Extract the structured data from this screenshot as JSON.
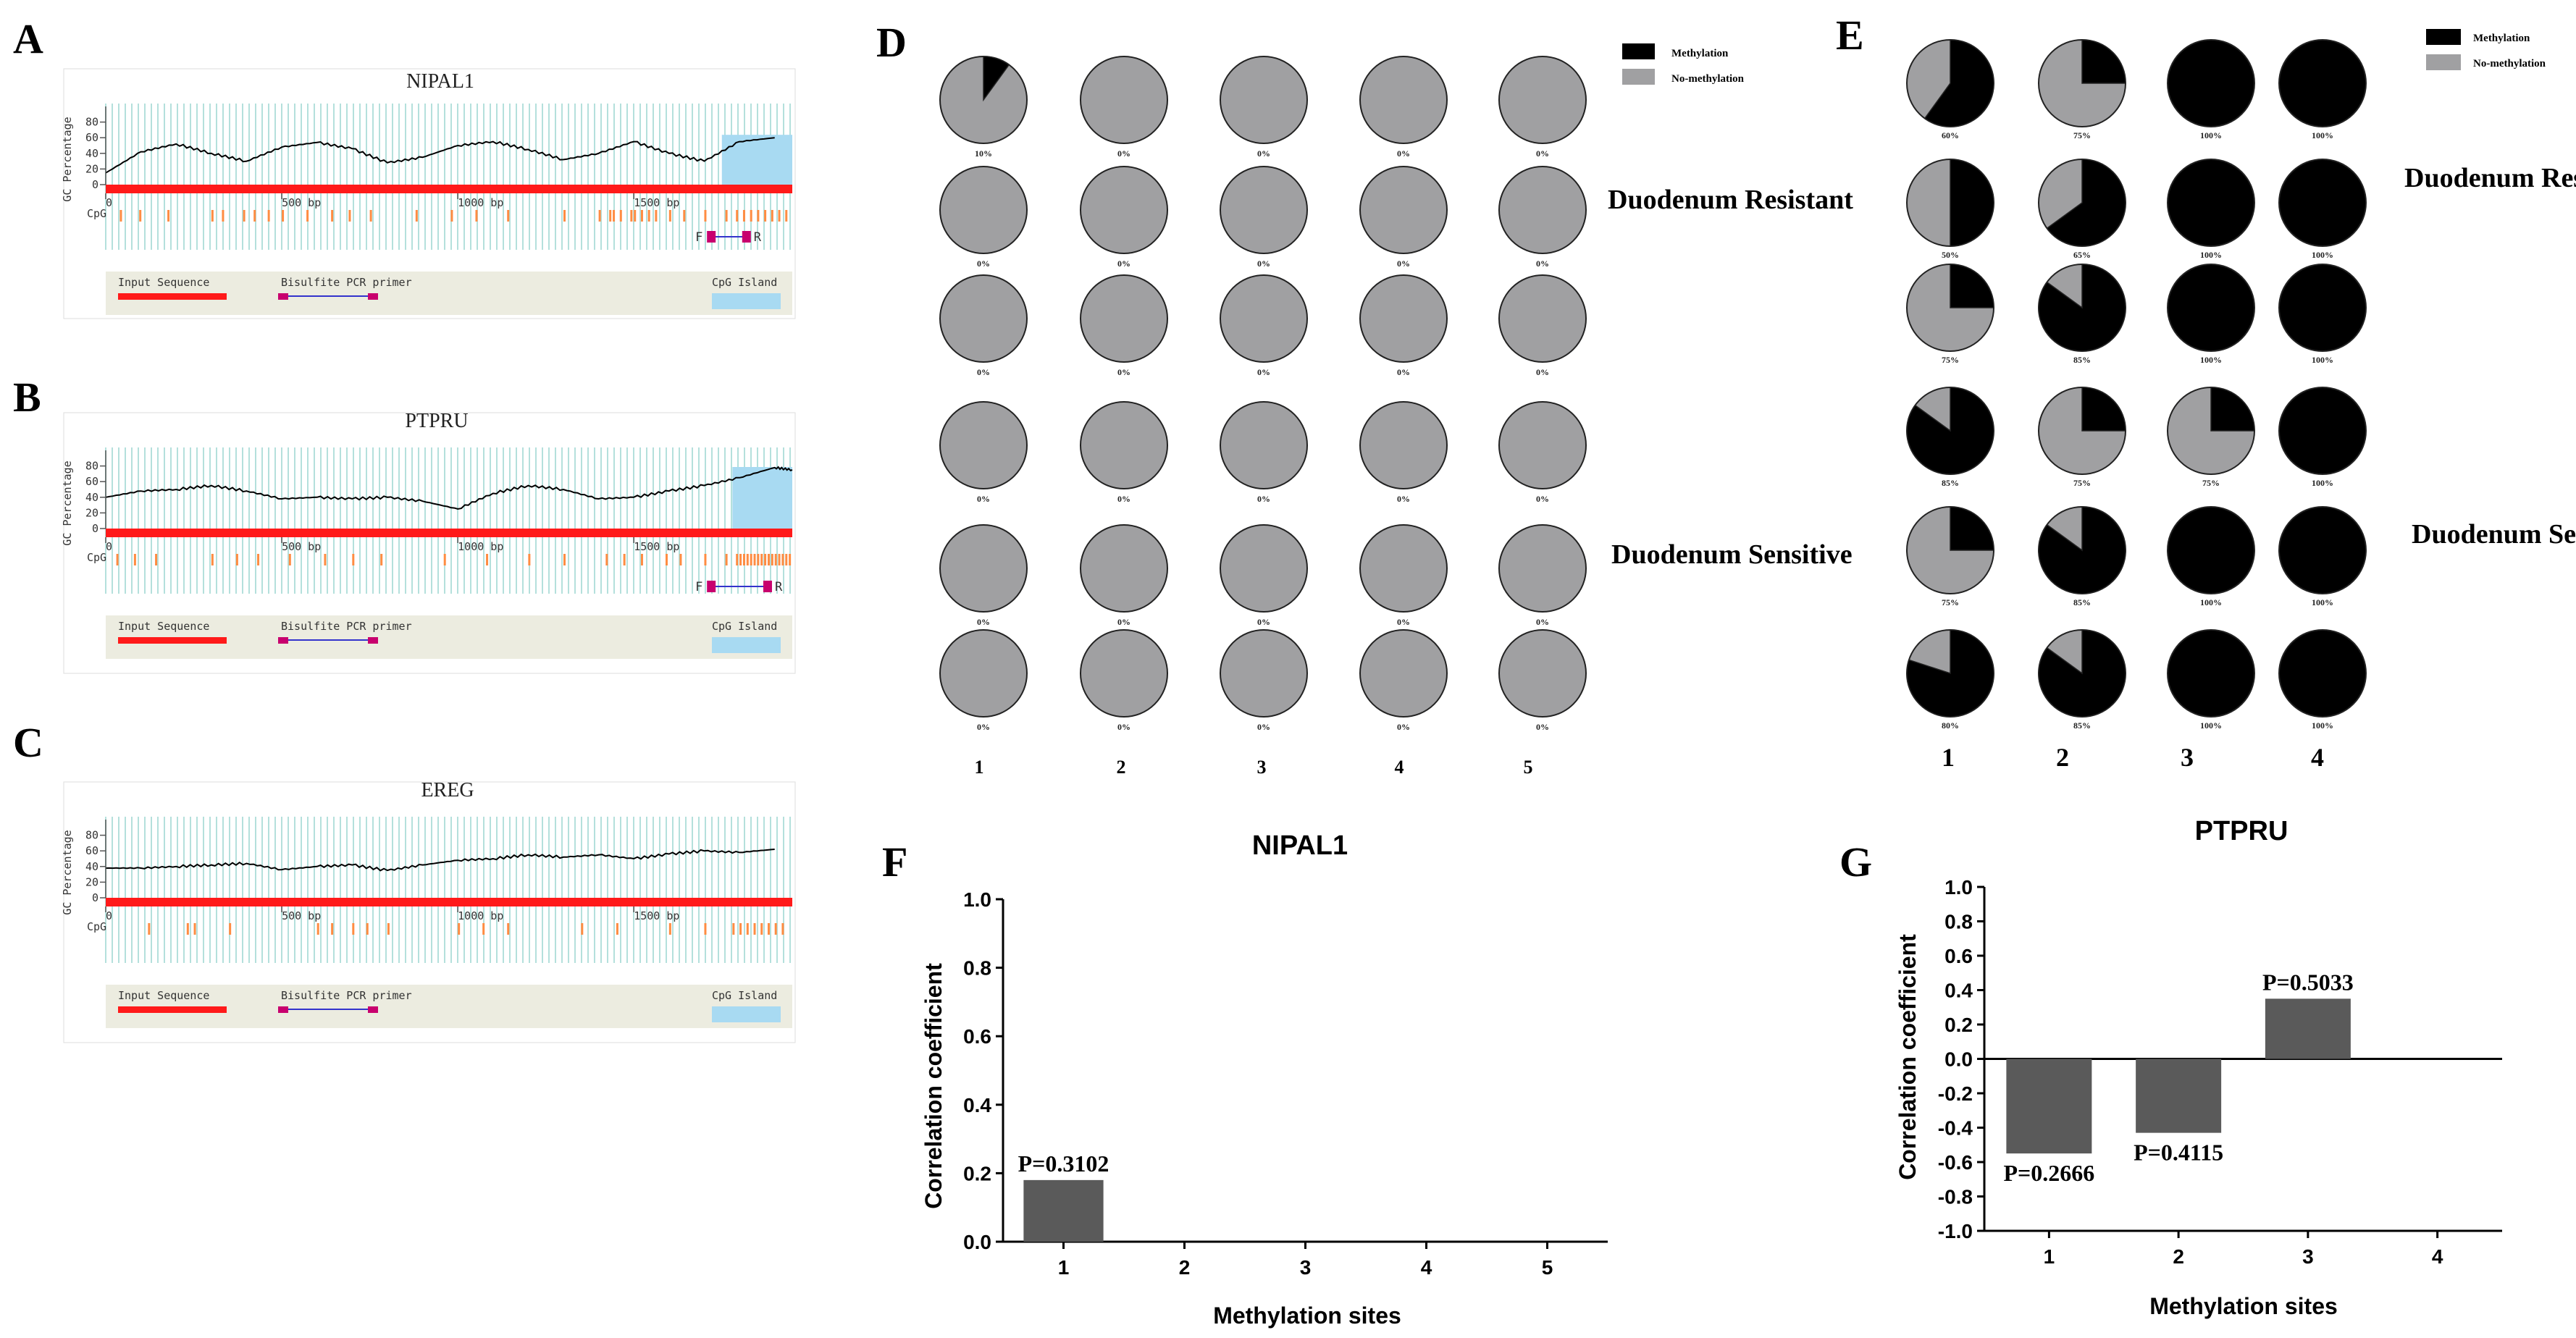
{
  "chart_data": [
    {
      "type": "line",
      "panel": "A",
      "title": "NIPAL1",
      "ylabel": "GC Percentage",
      "yticks": [
        "0",
        "20",
        "40",
        "60",
        "80"
      ],
      "xticks": [
        "0",
        "500 bp",
        "1000 bp",
        "1500 bp"
      ],
      "cpg_label": "CpG",
      "primer_ends": [
        "F",
        "R"
      ],
      "legend": [
        "Input Sequence",
        "Bisulfite PCR primer",
        "CpG Island"
      ],
      "x": [
        0,
        100,
        200,
        300,
        400,
        500,
        600,
        700,
        800,
        900,
        1000,
        1100,
        1200,
        1300,
        1400,
        1500,
        1600,
        1700,
        1800,
        1900
      ],
      "values": [
        15,
        42,
        52,
        40,
        30,
        48,
        54,
        46,
        28,
        35,
        50,
        55,
        45,
        32,
        40,
        55,
        40,
        30,
        55,
        60
      ],
      "xlim": [
        0,
        1950
      ],
      "ylim": [
        0,
        100
      ],
      "island": [
        1750,
        1950
      ]
    },
    {
      "type": "line",
      "panel": "B",
      "title": "PTPRU",
      "ylabel": "GC Percentage",
      "yticks": [
        "0",
        "20",
        "40",
        "60",
        "80"
      ],
      "xticks": [
        "0",
        "500 bp",
        "1000 bp",
        "1500 bp"
      ],
      "cpg_label": "CpG",
      "primer_ends": [
        "F",
        "R"
      ],
      "legend": [
        "Input Sequence",
        "Bisulfite PCR primer",
        "CpG Island"
      ],
      "x": [
        0,
        100,
        200,
        300,
        400,
        500,
        600,
        700,
        800,
        900,
        1000,
        1100,
        1200,
        1300,
        1400,
        1500,
        1600,
        1700,
        1800,
        1900,
        1950
      ],
      "values": [
        40,
        48,
        50,
        55,
        48,
        38,
        40,
        38,
        40,
        35,
        25,
        45,
        55,
        50,
        38,
        40,
        48,
        55,
        65,
        78,
        75
      ],
      "xlim": [
        0,
        1950
      ],
      "ylim": [
        0,
        100
      ],
      "island": [
        1780,
        1950
      ]
    },
    {
      "type": "line",
      "panel": "C",
      "title": "EREG",
      "ylabel": "GC Percentage",
      "yticks": [
        "0",
        "20",
        "40",
        "60",
        "80"
      ],
      "xticks": [
        "0",
        "500 bp",
        "1000 bp",
        "1500 bp"
      ],
      "cpg_label": "CpG",
      "legend": [
        "Input Sequence",
        "Bisulfite PCR primer",
        "CpG Island"
      ],
      "x": [
        0,
        100,
        200,
        300,
        400,
        500,
        600,
        700,
        800,
        900,
        1000,
        1100,
        1200,
        1300,
        1400,
        1500,
        1600,
        1700,
        1800,
        1900
      ],
      "values": [
        38,
        38,
        40,
        42,
        44,
        36,
        40,
        42,
        35,
        42,
        48,
        50,
        55,
        52,
        55,
        50,
        56,
        60,
        58,
        62
      ],
      "xlim": [
        0,
        1950
      ],
      "ylim": [
        0,
        100
      ]
    },
    {
      "type": "pie",
      "panel": "D",
      "columns": [
        "1",
        "2",
        "3",
        "4",
        "5"
      ],
      "legend": [
        "Methylation",
        "No-methylation"
      ],
      "groups": [
        "Duodenum Resistant",
        "Duodenum Sensitive"
      ],
      "values": [
        [
          10,
          0,
          0,
          0,
          0
        ],
        [
          0,
          0,
          0,
          0,
          0
        ],
        [
          0,
          0,
          0,
          0,
          0
        ],
        [
          0,
          0,
          0,
          0,
          0
        ],
        [
          0,
          0,
          0,
          0,
          0
        ],
        [
          0,
          0,
          0,
          0,
          0
        ]
      ],
      "labels": [
        [
          "10%",
          "0%",
          "0%",
          "0%",
          "0%"
        ],
        [
          "0%",
          "0%",
          "0%",
          "0%",
          "0%"
        ],
        [
          "0%",
          "0%",
          "0%",
          "0%",
          "0%"
        ],
        [
          "0%",
          "0%",
          "0%",
          "0%",
          "0%"
        ],
        [
          "0%",
          "0%",
          "0%",
          "0%",
          "0%"
        ],
        [
          "0%",
          "0%",
          "0%",
          "0%",
          "0%"
        ]
      ]
    },
    {
      "type": "pie",
      "panel": "E",
      "columns": [
        "1",
        "2",
        "3",
        "4"
      ],
      "legend": [
        "Methylation",
        "No-methylation"
      ],
      "groups": [
        "Duodenum Resistant",
        "Duodenum Sensitive"
      ],
      "values": [
        [
          60,
          25,
          100,
          100
        ],
        [
          50,
          65,
          100,
          100
        ],
        [
          25,
          85,
          100,
          100
        ],
        [
          85,
          25,
          25,
          100
        ],
        [
          25,
          85,
          100,
          100
        ],
        [
          80,
          85,
          100,
          100
        ]
      ],
      "labels": [
        [
          "60%",
          "75%",
          "100%",
          "100%"
        ],
        [
          "50%",
          "65%",
          "100%",
          "100%"
        ],
        [
          "75%",
          "85%",
          "100%",
          "100%"
        ],
        [
          "85%",
          "75%",
          "75%",
          "100%"
        ],
        [
          "75%",
          "85%",
          "100%",
          "100%"
        ],
        [
          "80%",
          "85%",
          "100%",
          "100%"
        ]
      ]
    },
    {
      "type": "bar",
      "panel": "F",
      "title": "NIPAL1",
      "xlabel": "Methylation sites",
      "ylabel": "Correlation coefficient",
      "categories": [
        "1",
        "2",
        "3",
        "4",
        "5"
      ],
      "values": [
        0.18,
        0,
        0,
        0,
        0
      ],
      "annotations": [
        "P=0.3102",
        "",
        "",
        "",
        ""
      ],
      "ylim": [
        0,
        1.0
      ],
      "yticks": [
        "0.0",
        "0.2",
        "0.4",
        "0.6",
        "0.8",
        "1.0"
      ]
    },
    {
      "type": "bar",
      "panel": "G",
      "title": "PTPRU",
      "xlabel": "Methylation sites",
      "ylabel": "Correlation coefficient",
      "categories": [
        "1",
        "2",
        "3",
        "4"
      ],
      "values": [
        -0.55,
        -0.43,
        0.35,
        0
      ],
      "annotations": [
        "P=0.2666",
        "P=0.4115",
        "P=0.5033",
        ""
      ],
      "ylim": [
        -1.0,
        1.0
      ],
      "yticks": [
        "-1.0",
        "-0.8",
        "-0.6",
        "-0.4",
        "-0.2",
        "0.0",
        "0.2",
        "0.4",
        "0.6",
        "0.8",
        "1.0"
      ]
    }
  ],
  "colors": {
    "gc_line": "#000000",
    "gc_stripe": "#b4e0dc",
    "red_bar": "#ff1a1a",
    "cpg_tick": "#ff8c42",
    "island": "#a8daf2",
    "primer": "#c8006e",
    "primer_line": "#3333cc",
    "legend_bg": "#ecece0",
    "methyl": "#000000",
    "no_methyl": "#a0a0a2",
    "bar_fill": "#5a5a5a"
  }
}
